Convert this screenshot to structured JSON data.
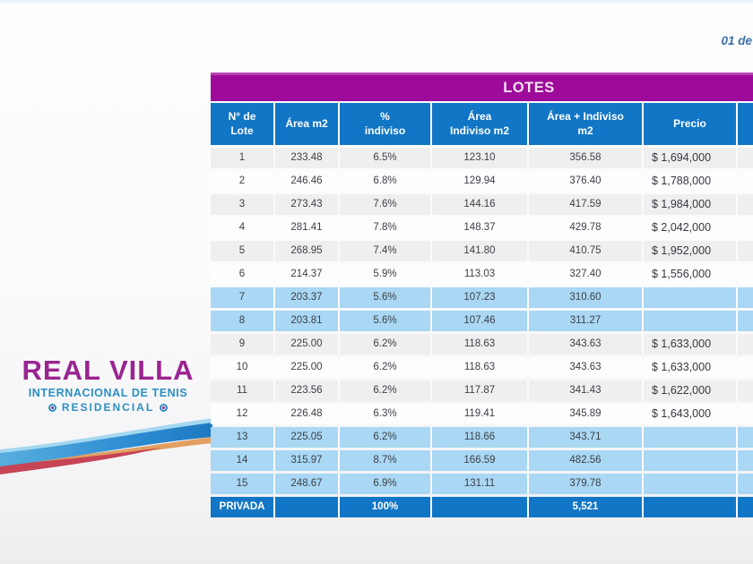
{
  "page": {
    "date_label": "01 de"
  },
  "logo": {
    "title": "REAL VILLA",
    "subtitle": "INTERNACIONAL DE TENIS",
    "tagline": "RESIDENCIAL",
    "title_color": "#9a2491",
    "subtitle_color": "#2b8fc2",
    "swoosh_colors": [
      "#a5d8f0",
      "#2f8ed3",
      "#e29f62",
      "#c64456"
    ]
  },
  "table": {
    "title": "LOTES",
    "title_bg": "#9e0a9a",
    "header_bg": "#1176c5",
    "zebra_gray": "#efefef",
    "highlight_blue": "#a9d7f4",
    "columns": [
      "N° de\nLote",
      "Área m2",
      "%\nindiviso",
      "Área\nIndiviso m2",
      "Área + Indiviso\nm2",
      "Precio",
      ""
    ],
    "rows": [
      {
        "lote": "1",
        "area": "233.48",
        "pct": "6.5%",
        "area_ind": "123.10",
        "area_total": "356.58",
        "precio": "$ 1,694,000",
        "extra": "",
        "variant": "gray"
      },
      {
        "lote": "2",
        "area": "246.46",
        "pct": "6.8%",
        "area_ind": "129.94",
        "area_total": "376.40",
        "precio": "$ 1,788,000",
        "extra": "",
        "variant": "white"
      },
      {
        "lote": "3",
        "area": "273.43",
        "pct": "7.6%",
        "area_ind": "144.16",
        "area_total": "417.59",
        "precio": "$ 1,984,000",
        "extra": "",
        "variant": "gray"
      },
      {
        "lote": "4",
        "area": "281.41",
        "pct": "7.8%",
        "area_ind": "148.37",
        "area_total": "429.78",
        "precio": "$ 2,042,000",
        "extra": "",
        "variant": "white"
      },
      {
        "lote": "5",
        "area": "268.95",
        "pct": "7.4%",
        "area_ind": "141.80",
        "area_total": "410.75",
        "precio": "$ 1,952,000",
        "extra": "",
        "variant": "gray"
      },
      {
        "lote": "6",
        "area": "214.37",
        "pct": "5.9%",
        "area_ind": "113.03",
        "area_total": "327.40",
        "precio": "$ 1,556,000",
        "extra": "",
        "variant": "white"
      },
      {
        "lote": "7",
        "area": "203.37",
        "pct": "5.6%",
        "area_ind": "107.23",
        "area_total": "310.60",
        "precio": "",
        "extra": "",
        "variant": "blue"
      },
      {
        "lote": "8",
        "area": "203.81",
        "pct": "5.6%",
        "area_ind": "107.46",
        "area_total": "311.27",
        "precio": "",
        "extra": "",
        "variant": "blue"
      },
      {
        "lote": "9",
        "area": "225.00",
        "pct": "6.2%",
        "area_ind": "118.63",
        "area_total": "343.63",
        "precio": "$ 1,633,000",
        "extra": "",
        "variant": "gray"
      },
      {
        "lote": "10",
        "area": "225.00",
        "pct": "6.2%",
        "area_ind": "118.63",
        "area_total": "343.63",
        "precio": "$ 1,633,000",
        "extra": "",
        "variant": "white"
      },
      {
        "lote": "11",
        "area": "223.56",
        "pct": "6.2%",
        "area_ind": "117.87",
        "area_total": "341.43",
        "precio": "$ 1,622,000",
        "extra": "",
        "variant": "gray"
      },
      {
        "lote": "12",
        "area": "226.48",
        "pct": "6.3%",
        "area_ind": "119.41",
        "area_total": "345.89",
        "precio": "$ 1,643,000",
        "extra": "",
        "variant": "white"
      },
      {
        "lote": "13",
        "area": "225.05",
        "pct": "6.2%",
        "area_ind": "118.66",
        "area_total": "343.71",
        "precio": "",
        "extra": "",
        "variant": "blue"
      },
      {
        "lote": "14",
        "area": "315.97",
        "pct": "8.7%",
        "area_ind": "166.59",
        "area_total": "482.56",
        "precio": "",
        "extra": "",
        "variant": "blue"
      },
      {
        "lote": "15",
        "area": "248.67",
        "pct": "6.9%",
        "area_ind": "131.11",
        "area_total": "379.78",
        "precio": "",
        "extra": "",
        "variant": "blue"
      }
    ],
    "total_row": {
      "lote": "PRIVADA",
      "area": "",
      "pct": "100%",
      "area_ind": "",
      "area_total": "5,521",
      "precio": "",
      "extra": "",
      "variant": "total"
    }
  }
}
